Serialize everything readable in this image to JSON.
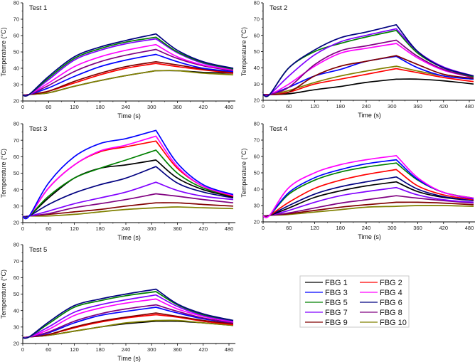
{
  "chart_data": [
    {
      "type": "line",
      "title": "Test 1",
      "xlabel": "Time (s)",
      "ylabel": "Temperature (°C)",
      "xlim": [
        0,
        495
      ],
      "ylim": [
        20,
        80
      ],
      "xticks": [
        0,
        60,
        120,
        180,
        240,
        300,
        360,
        420,
        480
      ],
      "yticks": [
        20,
        30,
        40,
        50,
        60,
        70,
        80
      ],
      "x": [
        0,
        15,
        60,
        120,
        180,
        240,
        310,
        360,
        420,
        490
      ],
      "series": [
        {
          "name": "FBG 1",
          "values": [
            23.5,
            24,
            25,
            29,
            32.5,
            35.5,
            38.5,
            38.5,
            37.5,
            37
          ]
        },
        {
          "name": "FBG 2",
          "values": [
            23.5,
            24,
            26,
            31,
            36,
            40,
            43,
            41,
            39,
            37
          ]
        },
        {
          "name": "FBG 3",
          "values": [
            23.5,
            24,
            28,
            35,
            41,
            45,
            48.5,
            44,
            40,
            38
          ]
        },
        {
          "name": "FBG 4",
          "values": [
            23.5,
            24,
            31,
            41,
            47,
            51,
            54.5,
            47,
            42,
            39
          ]
        },
        {
          "name": "FBG 5",
          "values": [
            23.5,
            24,
            34,
            46,
            52,
            56,
            59,
            50,
            43.5,
            39.5
          ]
        },
        {
          "name": "FBG 6",
          "values": [
            23.5,
            24,
            35,
            47,
            53,
            57,
            61,
            51,
            44,
            40
          ]
        },
        {
          "name": "FBG 7",
          "values": [
            23.5,
            24,
            33,
            45,
            51,
            55,
            58,
            49.5,
            43,
            39.5
          ]
        },
        {
          "name": "FBG 8",
          "values": [
            23.5,
            24,
            29.5,
            38,
            44,
            48,
            51.5,
            46,
            41.5,
            38.5
          ]
        },
        {
          "name": "FBG 9",
          "values": [
            23.5,
            24,
            26,
            32,
            37,
            41,
            44,
            42,
            39.5,
            37.5
          ]
        },
        {
          "name": "FBG 10",
          "values": [
            23.5,
            24,
            25,
            29,
            32.5,
            35.5,
            38.5,
            38.5,
            37,
            36
          ]
        }
      ]
    },
    {
      "type": "line",
      "title": "Test 2",
      "xlabel": "Time (s)",
      "ylabel": "Temperature (°C)",
      "xlim": [
        0,
        495
      ],
      "ylim": [
        20,
        80
      ],
      "xticks": [
        0,
        60,
        120,
        180,
        240,
        300,
        360,
        420,
        480
      ],
      "yticks": [
        20,
        30,
        40,
        50,
        60,
        70,
        80
      ],
      "x": [
        0,
        15,
        60,
        120,
        180,
        240,
        310,
        360,
        420,
        490
      ],
      "series": [
        {
          "name": "FBG 1",
          "values": [
            23.5,
            23.5,
            24,
            26.5,
            28.5,
            31,
            33,
            33,
            32,
            30
          ]
        },
        {
          "name": "FBG 2",
          "values": [
            23.5,
            23.5,
            25,
            30,
            33,
            36,
            39.5,
            37,
            34,
            31.5
          ]
        },
        {
          "name": "FBG 3",
          "values": [
            23.5,
            23.5,
            28,
            35,
            39,
            44,
            47,
            40,
            35,
            33
          ]
        },
        {
          "name": "FBG 4",
          "values": [
            23.5,
            23.5,
            30,
            41,
            49,
            52,
            55,
            46,
            38.5,
            34
          ]
        },
        {
          "name": "FBG 5",
          "values": [
            23.5,
            23.5,
            40,
            50,
            55,
            59,
            63,
            49,
            40,
            34.5
          ]
        },
        {
          "name": "FBG 6",
          "values": [
            23.5,
            23.5,
            40,
            51,
            58.5,
            62,
            66.5,
            50,
            40,
            35
          ]
        },
        {
          "name": "FBG 7",
          "values": [
            23.5,
            23.5,
            35,
            48,
            56,
            60,
            64,
            50,
            40.5,
            35
          ]
        },
        {
          "name": "FBG 8",
          "values": [
            23.5,
            23.5,
            28,
            42,
            50.5,
            53.5,
            57,
            47,
            39,
            34
          ]
        },
        {
          "name": "FBG 9",
          "values": [
            23.5,
            23.5,
            25,
            35,
            41,
            44,
            47.5,
            42,
            36,
            33.5
          ]
        },
        {
          "name": "FBG 10",
          "values": [
            23.5,
            23.5,
            26,
            31,
            35,
            38,
            41,
            38,
            35,
            33
          ]
        }
      ]
    },
    {
      "type": "line",
      "title": "Test 3",
      "xlabel": "Time (s)",
      "ylabel": "Temperature (°C)",
      "xlim": [
        0,
        495
      ],
      "ylim": [
        20,
        80
      ],
      "xticks": [
        0,
        60,
        120,
        180,
        240,
        300,
        360,
        420,
        480
      ],
      "yticks": [
        20,
        30,
        40,
        50,
        60,
        70,
        80
      ],
      "x": [
        0,
        15,
        60,
        120,
        180,
        240,
        310,
        360,
        420,
        490
      ],
      "series": [
        {
          "name": "FBG 1",
          "values": [
            23.5,
            24,
            35,
            47,
            53,
            55,
            58,
            47,
            40,
            35.5
          ]
        },
        {
          "name": "FBG 2",
          "values": [
            23.5,
            24,
            41,
            55,
            63,
            66,
            69.5,
            53,
            42,
            36
          ]
        },
        {
          "name": "FBG 3",
          "values": [
            23.5,
            24,
            44,
            60,
            68,
            71,
            76,
            56,
            43,
            37
          ]
        },
        {
          "name": "FBG 4",
          "values": [
            23.5,
            24,
            41,
            55,
            63.5,
            67,
            72.5,
            54,
            42,
            36.5
          ]
        },
        {
          "name": "FBG 5",
          "values": [
            23.5,
            24,
            36,
            47,
            53,
            58,
            64,
            50,
            41,
            36
          ]
        },
        {
          "name": "FBG 6",
          "values": [
            23.5,
            24,
            31,
            38,
            43,
            47,
            54,
            44,
            38.5,
            35
          ]
        },
        {
          "name": "FBG 7",
          "values": [
            23.5,
            24,
            27,
            31.5,
            35,
            38.5,
            44.5,
            39.5,
            36,
            34
          ]
        },
        {
          "name": "FBG 8",
          "values": [
            23.5,
            24,
            25.5,
            29,
            31.5,
            34,
            37.5,
            36,
            34,
            32
          ]
        },
        {
          "name": "FBG 9",
          "values": [
            23.5,
            24,
            25,
            26.5,
            28,
            30,
            32,
            32,
            31,
            30
          ]
        },
        {
          "name": "FBG 10",
          "values": [
            23.5,
            24,
            24,
            25,
            26.5,
            28,
            29,
            29.5,
            29,
            28.5
          ]
        }
      ]
    },
    {
      "type": "line",
      "title": "Test 4",
      "xlabel": "Time (s)",
      "ylabel": "Temperature (°C)",
      "xlim": [
        0,
        495
      ],
      "ylim": [
        20,
        80
      ],
      "xticks": [
        0,
        60,
        120,
        180,
        240,
        300,
        360,
        420,
        480
      ],
      "yticks": [
        20,
        30,
        40,
        50,
        60,
        70,
        80
      ],
      "x": [
        0,
        15,
        60,
        120,
        180,
        240,
        310,
        360,
        420,
        490
      ],
      "series": [
        {
          "name": "FBG 1",
          "values": [
            23.5,
            24,
            28.5,
            35,
            39,
            42,
            44.5,
            38.5,
            35,
            33
          ]
        },
        {
          "name": "FBG 2",
          "values": [
            23.5,
            24,
            32,
            40.5,
            45.5,
            49,
            52,
            42,
            36.5,
            33.5
          ]
        },
        {
          "name": "FBG 3",
          "values": [
            23.5,
            24,
            38,
            47,
            52,
            55.5,
            58,
            46,
            38,
            34
          ]
        },
        {
          "name": "FBG 4",
          "values": [
            23.5,
            24,
            41,
            50,
            55,
            58,
            60.5,
            47,
            38,
            34.5
          ]
        },
        {
          "name": "FBG 5",
          "values": [
            23.5,
            24,
            37,
            45.5,
            50.5,
            53.5,
            56,
            45.5,
            38,
            34.5
          ]
        },
        {
          "name": "FBG 6",
          "values": [
            23.5,
            24,
            30,
            37,
            41.5,
            44.5,
            47.5,
            40,
            35.5,
            33
          ]
        },
        {
          "name": "FBG 7",
          "values": [
            23.5,
            24,
            27,
            32,
            36,
            38.5,
            41,
            36.5,
            33.5,
            32
          ]
        },
        {
          "name": "FBG 8",
          "values": [
            23.5,
            24,
            25.5,
            28.5,
            31.5,
            33.5,
            36,
            34.5,
            33,
            31.5
          ]
        },
        {
          "name": "FBG 9",
          "values": [
            23.5,
            24,
            25,
            27,
            29,
            30.5,
            32,
            32,
            31.5,
            30.5
          ]
        },
        {
          "name": "FBG 10",
          "values": [
            23.5,
            24,
            24.5,
            26,
            27.5,
            29,
            29.5,
            30,
            30,
            29.5
          ]
        }
      ]
    },
    {
      "type": "line",
      "title": "Test 5",
      "xlabel": "Time (s)",
      "ylabel": "Temperature (°C)",
      "xlim": [
        0,
        495
      ],
      "ylim": [
        20,
        80
      ],
      "xticks": [
        0,
        60,
        120,
        180,
        240,
        300,
        360,
        420,
        480
      ],
      "yticks": [
        20,
        30,
        40,
        50,
        60,
        70,
        80
      ],
      "x": [
        0,
        15,
        60,
        120,
        180,
        240,
        310,
        360,
        420,
        490
      ],
      "series": [
        {
          "name": "FBG 1",
          "values": [
            23.5,
            24,
            25,
            27.5,
            30,
            32,
            33.5,
            33.5,
            32.5,
            31
          ]
        },
        {
          "name": "FBG 2",
          "values": [
            23.5,
            24,
            25.5,
            29.5,
            33,
            35.5,
            37.5,
            36,
            33.5,
            31.5
          ]
        },
        {
          "name": "FBG 3",
          "values": [
            23.5,
            24,
            26.5,
            32.5,
            37,
            39.5,
            42,
            38.5,
            35,
            32.5
          ]
        },
        {
          "name": "FBG 4",
          "values": [
            23.5,
            24,
            28.5,
            37,
            41.5,
            44.5,
            47,
            41,
            36.5,
            33
          ]
        },
        {
          "name": "FBG 5",
          "values": [
            23.5,
            24,
            32,
            42,
            46,
            49,
            51.5,
            43.5,
            37.5,
            34
          ]
        },
        {
          "name": "FBG 6",
          "values": [
            23.5,
            24,
            33,
            43,
            47,
            50,
            53,
            44,
            38,
            34
          ]
        },
        {
          "name": "FBG 7",
          "values": [
            23.5,
            24,
            30,
            39,
            43.5,
            46.5,
            49.5,
            42.5,
            37,
            33.5
          ]
        },
        {
          "name": "FBG 8",
          "values": [
            23.5,
            24,
            27,
            33.5,
            38,
            41,
            43.5,
            39.5,
            35.5,
            32.5
          ]
        },
        {
          "name": "FBG 9",
          "values": [
            23.5,
            24,
            25.5,
            30,
            33.5,
            36,
            38.5,
            36.5,
            34,
            32
          ]
        },
        {
          "name": "FBG 10",
          "values": [
            23.5,
            24,
            25,
            27.5,
            30,
            32.5,
            34,
            34,
            32.5,
            31
          ]
        }
      ]
    }
  ],
  "legend": {
    "placement": "bottom-right",
    "entries": [
      {
        "label": "FBG 1",
        "color": "#000000"
      },
      {
        "label": "FBG 2",
        "color": "#ff0000"
      },
      {
        "label": "FBG 3",
        "color": "#0000ff"
      },
      {
        "label": "FBG 4",
        "color": "#ff00ff"
      },
      {
        "label": "FBG 5",
        "color": "#008000"
      },
      {
        "label": "FBG 6",
        "color": "#000080"
      },
      {
        "label": "FBG 7",
        "color": "#8000ff"
      },
      {
        "label": "FBG 8",
        "color": "#800080"
      },
      {
        "label": "FBG 9",
        "color": "#800000"
      },
      {
        "label": "FBG 10",
        "color": "#808000"
      }
    ]
  }
}
